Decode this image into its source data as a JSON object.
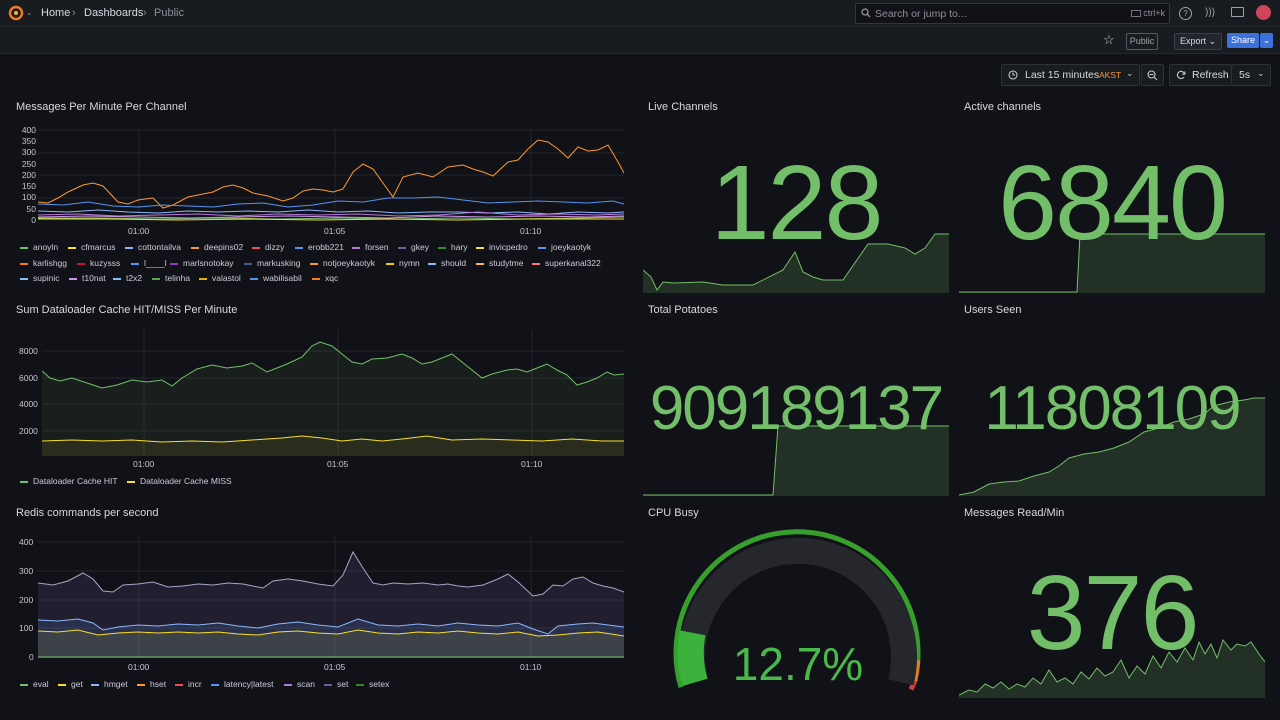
{
  "topbar": {
    "breadcrumb": [
      "Home",
      "Dashboards",
      "Public"
    ],
    "search_placeholder": "Search or jump to...",
    "search_shortcut": "ctrl+k"
  },
  "toolbar": {
    "public_badge": "Public",
    "export_label": "Export",
    "share_label": "Share",
    "time_range": "Last 15 minutes",
    "timezone": "AKST",
    "refresh_label": "Refresh",
    "refresh_interval": "5s"
  },
  "colors": {
    "green": "#73bf69",
    "orange": "#ff9830",
    "blue": "#5794f2",
    "yellow": "#fade2a",
    "accent": "#3d71d9"
  },
  "panels": {
    "messages": {
      "title": "Messages Per Minute Per Channel",
      "y_ticks": [
        "400",
        "350",
        "300",
        "250",
        "200",
        "150",
        "100",
        "50",
        "0"
      ],
      "x_ticks": [
        "01:00",
        "01:05",
        "01:10"
      ],
      "legend": [
        {
          "name": "anoyln",
          "color": "#73bf69"
        },
        {
          "name": "cfmarcus",
          "color": "#fade2a"
        },
        {
          "name": "cottontailva",
          "color": "#8ab8ff"
        },
        {
          "name": "deepins02",
          "color": "#ff9830"
        },
        {
          "name": "dizzy",
          "color": "#f2495c"
        },
        {
          "name": "erobb221",
          "color": "#5794f2"
        },
        {
          "name": "forsen",
          "color": "#b877d9"
        },
        {
          "name": "gkey",
          "color": "#705da0"
        },
        {
          "name": "hary",
          "color": "#37872d"
        },
        {
          "name": "invicpedro",
          "color": "#fade2a"
        },
        {
          "name": "joeykaotyk",
          "color": "#5794f2"
        },
        {
          "name": "karlishgg",
          "color": "#ff780a"
        },
        {
          "name": "kuzysss",
          "color": "#c4162a"
        },
        {
          "name": "l____l",
          "color": "#5794f2"
        },
        {
          "name": "marlsnotokay",
          "color": "#8f3bb8"
        },
        {
          "name": "markusking",
          "color": "#4e5e8a"
        },
        {
          "name": "notjoeykaotyk",
          "color": "#ff9830"
        },
        {
          "name": "nymn",
          "color": "#f2cc0c"
        },
        {
          "name": "should",
          "color": "#8ab8ff"
        },
        {
          "name": "studytme",
          "color": "#ffb357"
        },
        {
          "name": "superkanal322",
          "color": "#ff7383"
        },
        {
          "name": "supinic",
          "color": "#8ab8ff"
        },
        {
          "name": "t10nat",
          "color": "#ca95e5"
        },
        {
          "name": "t2x2",
          "color": "#8ab8ff"
        },
        {
          "name": "telinha",
          "color": "#56a64b"
        },
        {
          "name": "valastol",
          "color": "#e0b400"
        },
        {
          "name": "wabilisabil",
          "color": "#5794f2"
        },
        {
          "name": "xqc",
          "color": "#ff780a"
        }
      ]
    },
    "dataloader": {
      "title": "Sum Dataloader Cache HIT/MISS Per Minute",
      "y_ticks": [
        "8000",
        "6000",
        "4000",
        "2000"
      ],
      "x_ticks": [
        "01:00",
        "01:05",
        "01:10"
      ],
      "legend": [
        {
          "name": "Dataloader Cache HIT",
          "color": "#73bf69"
        },
        {
          "name": "Dataloader Cache MISS",
          "color": "#fade2a"
        }
      ]
    },
    "redis": {
      "title": "Redis commands per second",
      "y_ticks": [
        "400",
        "300",
        "200",
        "100",
        "0"
      ],
      "x_ticks": [
        "01:00",
        "01:05",
        "01:10"
      ],
      "legend": [
        {
          "name": "eval",
          "color": "#73bf69"
        },
        {
          "name": "get",
          "color": "#fade2a"
        },
        {
          "name": "hmget",
          "color": "#8ab8ff"
        },
        {
          "name": "hset",
          "color": "#ff9830"
        },
        {
          "name": "incr",
          "color": "#f2495c"
        },
        {
          "name": "latency|latest",
          "color": "#5794f2"
        },
        {
          "name": "scan",
          "color": "#b877d9"
        },
        {
          "name": "set",
          "color": "#705da0"
        },
        {
          "name": "setex",
          "color": "#37872d"
        }
      ]
    },
    "live_channels": {
      "title": "Live Channels",
      "value": "128"
    },
    "active_channels": {
      "title": "Active channels",
      "value": "6840"
    },
    "total_potatoes": {
      "title": "Total Potatoes",
      "value": "909189137"
    },
    "users_seen": {
      "title": "Users Seen",
      "value": "11808109"
    },
    "cpu_busy": {
      "title": "CPU Busy",
      "value": "12.7%",
      "percent": 12.7
    },
    "messages_read": {
      "title": "Messages Read/Min",
      "value": "376"
    }
  }
}
